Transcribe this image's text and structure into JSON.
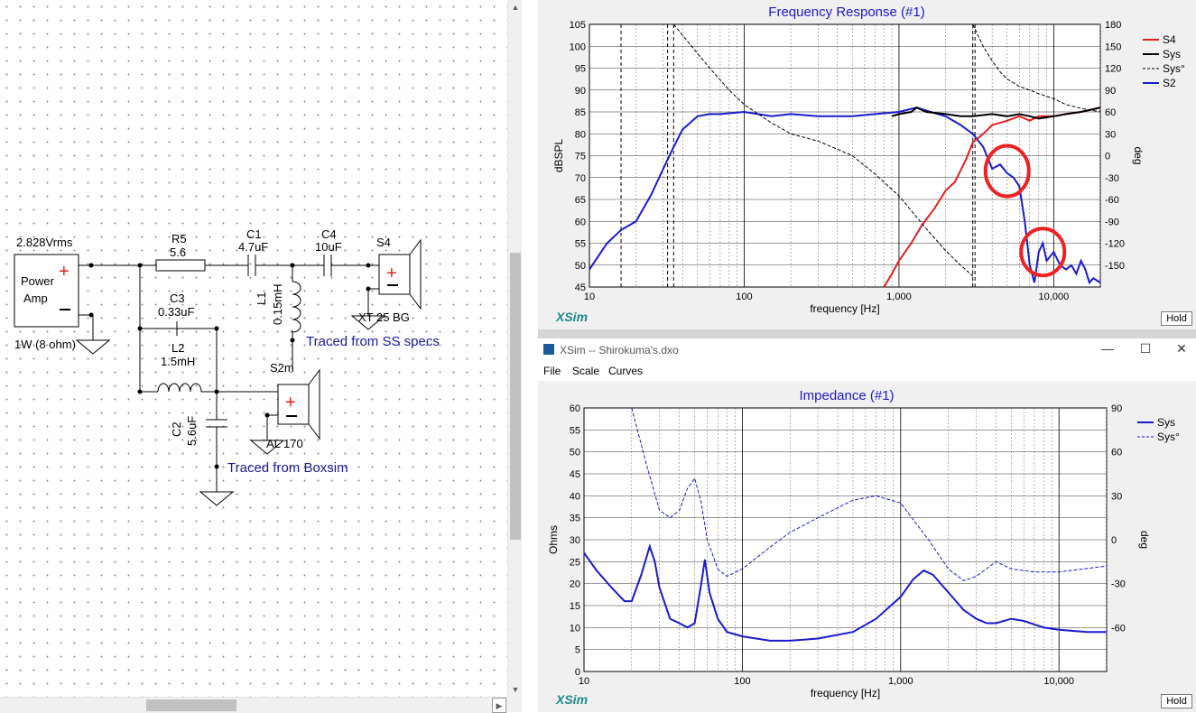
{
  "schematic": {
    "labels": {
      "vrms": "2.828Vrms",
      "amp_line1": "Power",
      "amp_line2": "Amp",
      "amp_note": "1W (8 ohm)",
      "r5": "R5",
      "r5_val": "5.6",
      "c1": "C1",
      "c1_val": "4.7uF",
      "c4": "C4",
      "c4_val": "10uF",
      "s4": "S4",
      "xt": "XT 25 BG",
      "l1": "L1",
      "l1_val": "0.15mH",
      "c3": "C3",
      "c3_val": "0.33uF",
      "l2": "L2",
      "l2_val": "1.5mH",
      "s2m": "S2m",
      "al": "AL 170",
      "c2": "C2",
      "c2_val": "5.6uF",
      "traced_ss": "Traced from SS specs",
      "traced_box": "Traced from Boxsim"
    }
  },
  "freq_panel": {
    "title": "Frequency Response (#1)",
    "ylabel_left": "dBSPL",
    "ylabel_right": "deg",
    "xlabel": "frequency [Hz]",
    "logo": "XSim",
    "hold": "Hold",
    "legend": [
      {
        "name": "S4",
        "color": "#e02020",
        "style": "solid"
      },
      {
        "name": "Sys",
        "color": "#000000",
        "style": "solid"
      },
      {
        "name": "Sys°",
        "color": "#000000",
        "style": "dashed"
      },
      {
        "name": "S2",
        "color": "#1a1acc",
        "style": "solid"
      }
    ]
  },
  "imp_window": {
    "title": "XSim -- Shirokuma's.dxo",
    "menu": [
      "File",
      "Scale",
      "Curves"
    ],
    "controls": {
      "minimize": "—",
      "maximize": "☐",
      "close": "✕"
    },
    "graph_title": "Impedance (#1)",
    "ylabel_left": "Ohms",
    "ylabel_right": "deg",
    "xlabel": "frequency [Hz]",
    "logo": "XSim",
    "hold": "Hold",
    "legend": [
      {
        "name": "Sys",
        "color": "#1a1acc",
        "style": "solid"
      },
      {
        "name": "Sys°",
        "color": "#1a1acc",
        "style": "dashed"
      }
    ]
  },
  "chart_data": [
    {
      "type": "line",
      "title": "Frequency Response (#1)",
      "xlabel": "frequency [Hz]",
      "ylabel": "dBSPL",
      "y2label": "deg",
      "xscale": "log",
      "xlim": [
        10,
        20000
      ],
      "ylim": [
        45,
        105
      ],
      "y2lim": [
        -180,
        180
      ],
      "xticks": [
        "10",
        "100",
        "1,000",
        "10,000"
      ],
      "yticks": [
        45,
        50,
        55,
        60,
        65,
        70,
        75,
        80,
        85,
        90,
        95,
        100,
        105
      ],
      "y2ticks": [
        -150,
        -120,
        -90,
        -60,
        -30,
        0,
        30,
        60,
        90,
        120,
        150,
        180
      ],
      "grid": true,
      "legend_position": "right",
      "series": [
        {
          "name": "S2",
          "axis": "left",
          "color": "#1a1acc",
          "x": [
            10,
            13,
            16,
            20,
            25,
            30,
            35,
            40,
            50,
            60,
            70,
            100,
            150,
            200,
            300,
            500,
            700,
            1000,
            1300,
            1600,
            2000,
            2500,
            3000,
            3500,
            4000,
            4500,
            5000,
            5500,
            6000,
            6500,
            7000,
            7500,
            8000,
            8500,
            9000,
            10000,
            11000,
            12000,
            13000,
            14000,
            15000,
            16000,
            17000,
            18000,
            20000
          ],
          "y": [
            49,
            55,
            58,
            60,
            66,
            72,
            77,
            81,
            84,
            84.5,
            84.5,
            85,
            84,
            84.5,
            84,
            84,
            84.5,
            85,
            86,
            85,
            84,
            82,
            80,
            77,
            72,
            73,
            71,
            70,
            68,
            60,
            50,
            46,
            53,
            55,
            51,
            53,
            50,
            49,
            50,
            48,
            51,
            49,
            46,
            47,
            46
          ]
        },
        {
          "name": "S4",
          "axis": "left",
          "color": "#e02020",
          "x": [
            800,
            900,
            1000,
            1200,
            1400,
            1700,
            2000,
            2300,
            2700,
            3000,
            3500,
            4000,
            4500,
            5000,
            6000,
            7000,
            8000,
            10000,
            12000,
            15000,
            20000
          ],
          "y": [
            45,
            48,
            51,
            55,
            59,
            63,
            67,
            69,
            74,
            78,
            80,
            82,
            82.5,
            83,
            84,
            83,
            84,
            84,
            84.5,
            85,
            86
          ]
        },
        {
          "name": "Sys",
          "axis": "left",
          "color": "#000000",
          "x": [
            900,
            1000,
            1200,
            1300,
            1500,
            2000,
            2500,
            3000,
            4000,
            5000,
            6000,
            7000,
            8000,
            10000,
            12000,
            15000,
            20000
          ],
          "y": [
            84,
            84.5,
            85,
            86,
            85,
            84.5,
            84,
            84,
            84.5,
            84,
            84.5,
            84,
            83.5,
            84,
            84.5,
            85,
            86
          ]
        },
        {
          "name": "Sys°",
          "axis": "right",
          "color": "#000000",
          "x": [
            35,
            40,
            50,
            60,
            80,
            100,
            150,
            200,
            300,
            500,
            700,
            1000,
            1500,
            2000,
            2500,
            3000
          ],
          "y": [
            180,
            165,
            140,
            120,
            90,
            70,
            45,
            30,
            20,
            0,
            -25,
            -55,
            -100,
            -130,
            -150,
            -165
          ]
        },
        {
          "name": "Sys°",
          "axis": "right",
          "color": "#000000",
          "x": [
            3000,
            3500,
            4000,
            4500,
            5000,
            6000,
            7000,
            8000,
            10000,
            12000,
            15000,
            20000
          ],
          "y": [
            180,
            150,
            130,
            115,
            105,
            95,
            90,
            85,
            78,
            70,
            65,
            60
          ]
        }
      ],
      "annotations": [
        "red circle near 5,000 Hz",
        "red circle near 8,500 Hz"
      ]
    },
    {
      "type": "line",
      "title": "Impedance (#1)",
      "xlabel": "frequency [Hz]",
      "ylabel": "Ohms",
      "y2label": "deg",
      "xscale": "log",
      "xlim": [
        10,
        20000
      ],
      "ylim": [
        0,
        60
      ],
      "y2lim": [
        -90,
        90
      ],
      "xticks": [
        "10",
        "100",
        "1,000",
        "10,000"
      ],
      "yticks": [
        0,
        5,
        10,
        15,
        20,
        25,
        30,
        35,
        40,
        45,
        50,
        55,
        60
      ],
      "y2ticks": [
        -60,
        -30,
        0,
        30,
        60,
        90
      ],
      "grid": true,
      "legend_position": "right",
      "series": [
        {
          "name": "Sys",
          "axis": "left",
          "color": "#1a1acc",
          "x": [
            10,
            12,
            15,
            18,
            20,
            23,
            26,
            28,
            30,
            35,
            40,
            45,
            50,
            55,
            58,
            62,
            70,
            80,
            100,
            150,
            200,
            300,
            500,
            700,
            1000,
            1200,
            1400,
            1600,
            2000,
            2500,
            3000,
            3500,
            4000,
            5000,
            6000,
            8000,
            10000,
            15000,
            20000
          ],
          "y": [
            27,
            23,
            19,
            16,
            16,
            22,
            28.5,
            25,
            19,
            12,
            11,
            10,
            11,
            20,
            25.5,
            18,
            12,
            9,
            8,
            7,
            7,
            7.5,
            9,
            12,
            17,
            21,
            23,
            22,
            18,
            14,
            12,
            11,
            11,
            12,
            11.5,
            10,
            9.5,
            9,
            9
          ]
        },
        {
          "name": "Sys°",
          "axis": "right",
          "color": "#1a1acc",
          "x": [
            20,
            25,
            30,
            35,
            40,
            45,
            50,
            55,
            60,
            70,
            80,
            100,
            150,
            200,
            300,
            500,
            700,
            1000,
            1500,
            2000,
            2500,
            3000,
            4000,
            5000,
            7000,
            10000,
            20000
          ],
          "y": [
            90,
            50,
            20,
            15,
            20,
            35,
            42,
            25,
            0,
            -20,
            -25,
            -20,
            -5,
            5,
            15,
            27,
            30,
            25,
            0,
            -20,
            -28,
            -25,
            -15,
            -20,
            -22,
            -22,
            -18
          ]
        }
      ]
    }
  ]
}
